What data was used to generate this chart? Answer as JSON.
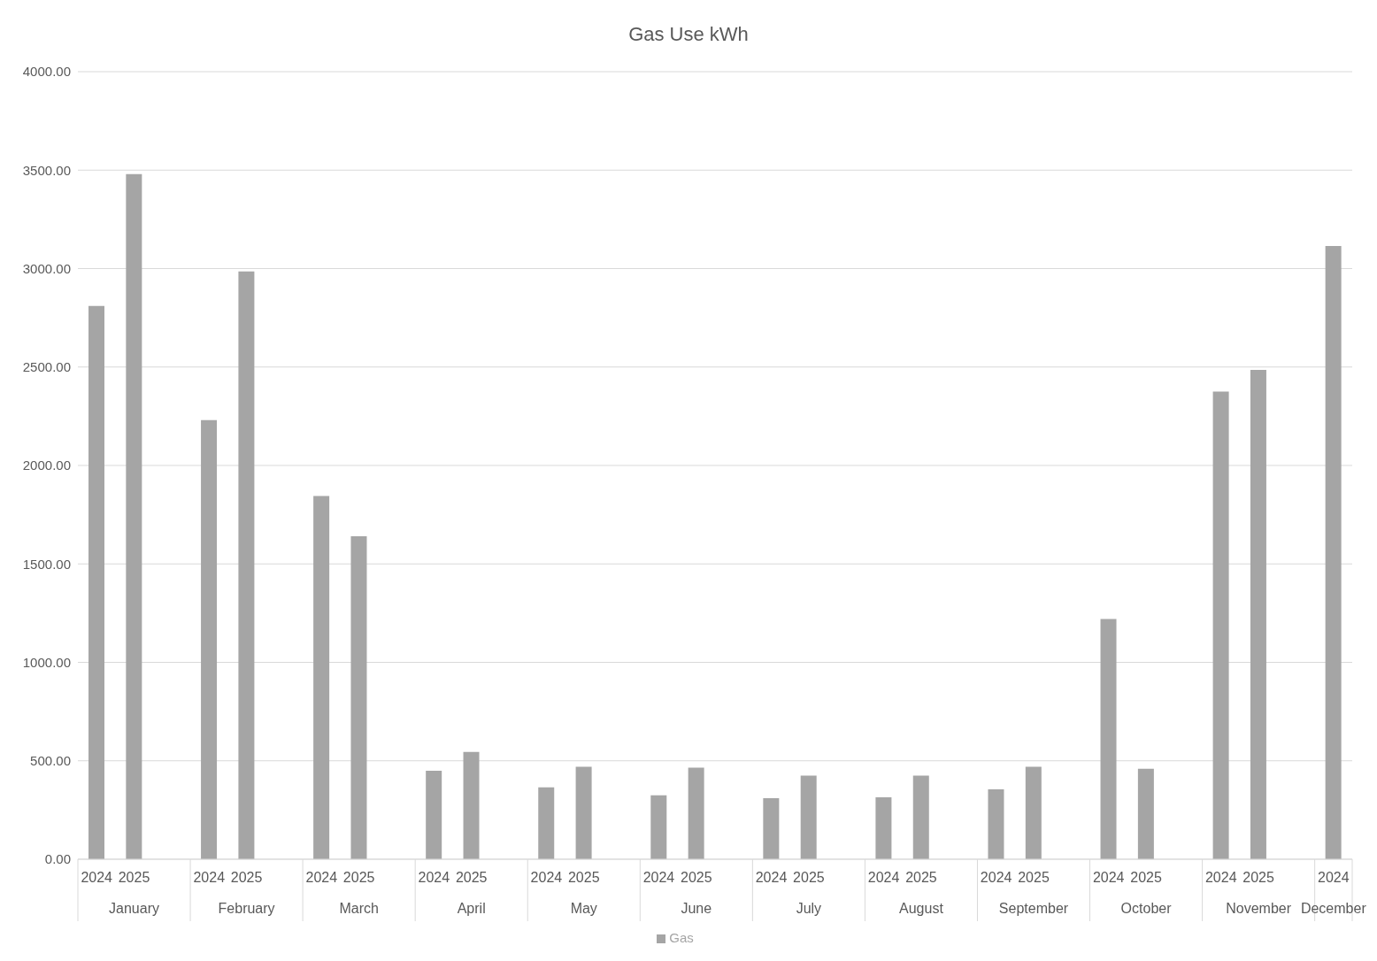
{
  "chart_data": {
    "type": "bar",
    "title": "Gas Use kWh",
    "categories": [
      "2024",
      "2025",
      null,
      "2024",
      "2025",
      null,
      "2024",
      "2025",
      null,
      "2024",
      "2025",
      null,
      "2024",
      "2025",
      null,
      "2024",
      "2025",
      null,
      "2024",
      "2025",
      null,
      "2024",
      "2025",
      null,
      "2024",
      "2025",
      null,
      "2024",
      "2025",
      null,
      "2024",
      "2025",
      null,
      "2024"
    ],
    "series": [
      {
        "name": "Gas",
        "color": "#a5a5a5",
        "values": [
          2810,
          3480,
          null,
          2230,
          2985,
          null,
          1845,
          1640,
          null,
          450,
          545,
          null,
          365,
          470,
          null,
          325,
          465,
          null,
          310,
          425,
          null,
          315,
          425,
          null,
          355,
          470,
          null,
          1220,
          460,
          null,
          2375,
          2485,
          null,
          3115
        ]
      }
    ],
    "annotations": [
      "January",
      "February",
      "March",
      "April",
      "May",
      "June",
      "July",
      "August",
      "September",
      "October",
      "November",
      "December"
    ],
    "ylim": [
      0,
      4000
    ],
    "yticks": [
      {
        "value": 0,
        "label": "0.00"
      },
      {
        "value": 500,
        "label": "500.00"
      },
      {
        "value": 1000,
        "label": "1000.00"
      },
      {
        "value": 1500,
        "label": "1500.00"
      },
      {
        "value": 2000,
        "label": "2000.00"
      },
      {
        "value": 2500,
        "label": "2500.00"
      },
      {
        "value": 3000,
        "label": "3000.00"
      },
      {
        "value": 3500,
        "label": "3500.00"
      },
      {
        "value": 4000,
        "label": "4000.00"
      }
    ],
    "grid": "y",
    "legend": "bottom"
  }
}
